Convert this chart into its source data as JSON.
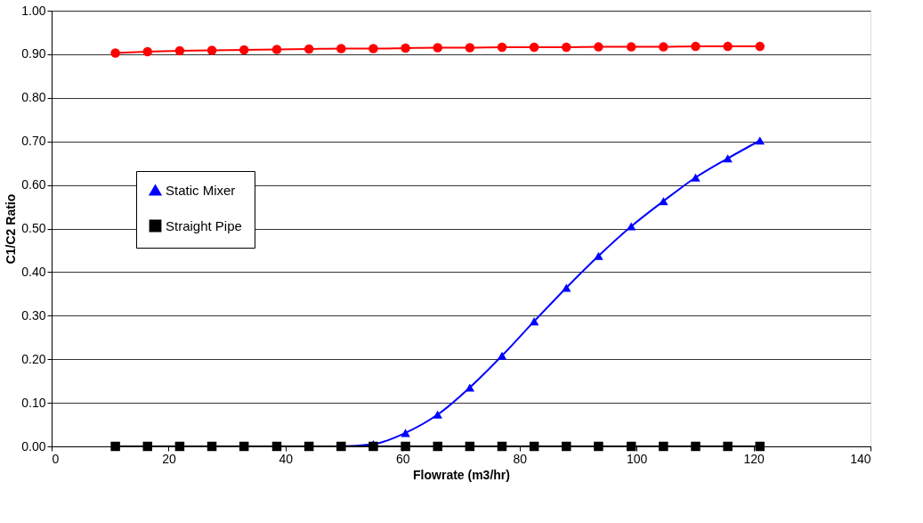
{
  "chart_data": {
    "type": "line",
    "xlabel": "Flowrate (m3/hr)",
    "ylabel": "C1/C2 Ratio",
    "x": [
      10.9,
      16.4,
      21.9,
      27.4,
      32.9,
      38.5,
      44.0,
      49.5,
      55.0,
      60.5,
      66.0,
      71.5,
      77.0,
      82.5,
      88.0,
      93.5,
      99.1,
      104.6,
      110.1,
      115.6,
      121.1
    ],
    "series": [
      {
        "color": "#ff0000",
        "marker": "circle",
        "values": [
          0.903,
          0.906,
          0.908,
          0.909,
          0.91,
          0.911,
          0.912,
          0.913,
          0.913,
          0.914,
          0.915,
          0.915,
          0.916,
          0.916,
          0.916,
          0.917,
          0.917,
          0.917,
          0.918,
          0.918,
          0.918
        ]
      },
      {
        "name": "Static Mixer",
        "color": "#0000ff",
        "marker": "triangle",
        "values": [
          null,
          null,
          null,
          null,
          null,
          null,
          0,
          0,
          0.005,
          0.031,
          0.073,
          0.135,
          0.208,
          0.287,
          0.364,
          0.437,
          0.505,
          0.563,
          0.617,
          0.661,
          0.702
        ]
      },
      {
        "name": "Straight Pipe",
        "color": "#000000",
        "marker": "square",
        "values": [
          0,
          0,
          0,
          0,
          0,
          0,
          0,
          0,
          0,
          0,
          0,
          0,
          0,
          0,
          0,
          0,
          0,
          0,
          0,
          0,
          0
        ]
      }
    ],
    "xlim": [
      0,
      140
    ],
    "xticks": [
      0,
      20,
      40,
      60,
      80,
      100,
      120,
      140
    ],
    "ylim": [
      0,
      1
    ],
    "yticks": [
      {
        "value": 0,
        "label": "0.00"
      },
      {
        "value": 0.1,
        "label": "0.10"
      },
      {
        "value": 0.2,
        "label": "0.20"
      },
      {
        "value": 0.3,
        "label": "0.30"
      },
      {
        "value": 0.4,
        "label": "0.40"
      },
      {
        "value": 0.5,
        "label": "0.50"
      },
      {
        "value": 0.6,
        "label": "0.60"
      },
      {
        "value": 0.7,
        "label": "0.70"
      },
      {
        "value": 0.8,
        "label": "0.80"
      },
      {
        "value": 0.9,
        "label": "0.90"
      },
      {
        "value": 1,
        "label": "1.00"
      }
    ],
    "grid": "y",
    "legend": "left",
    "line_style": "solid"
  }
}
